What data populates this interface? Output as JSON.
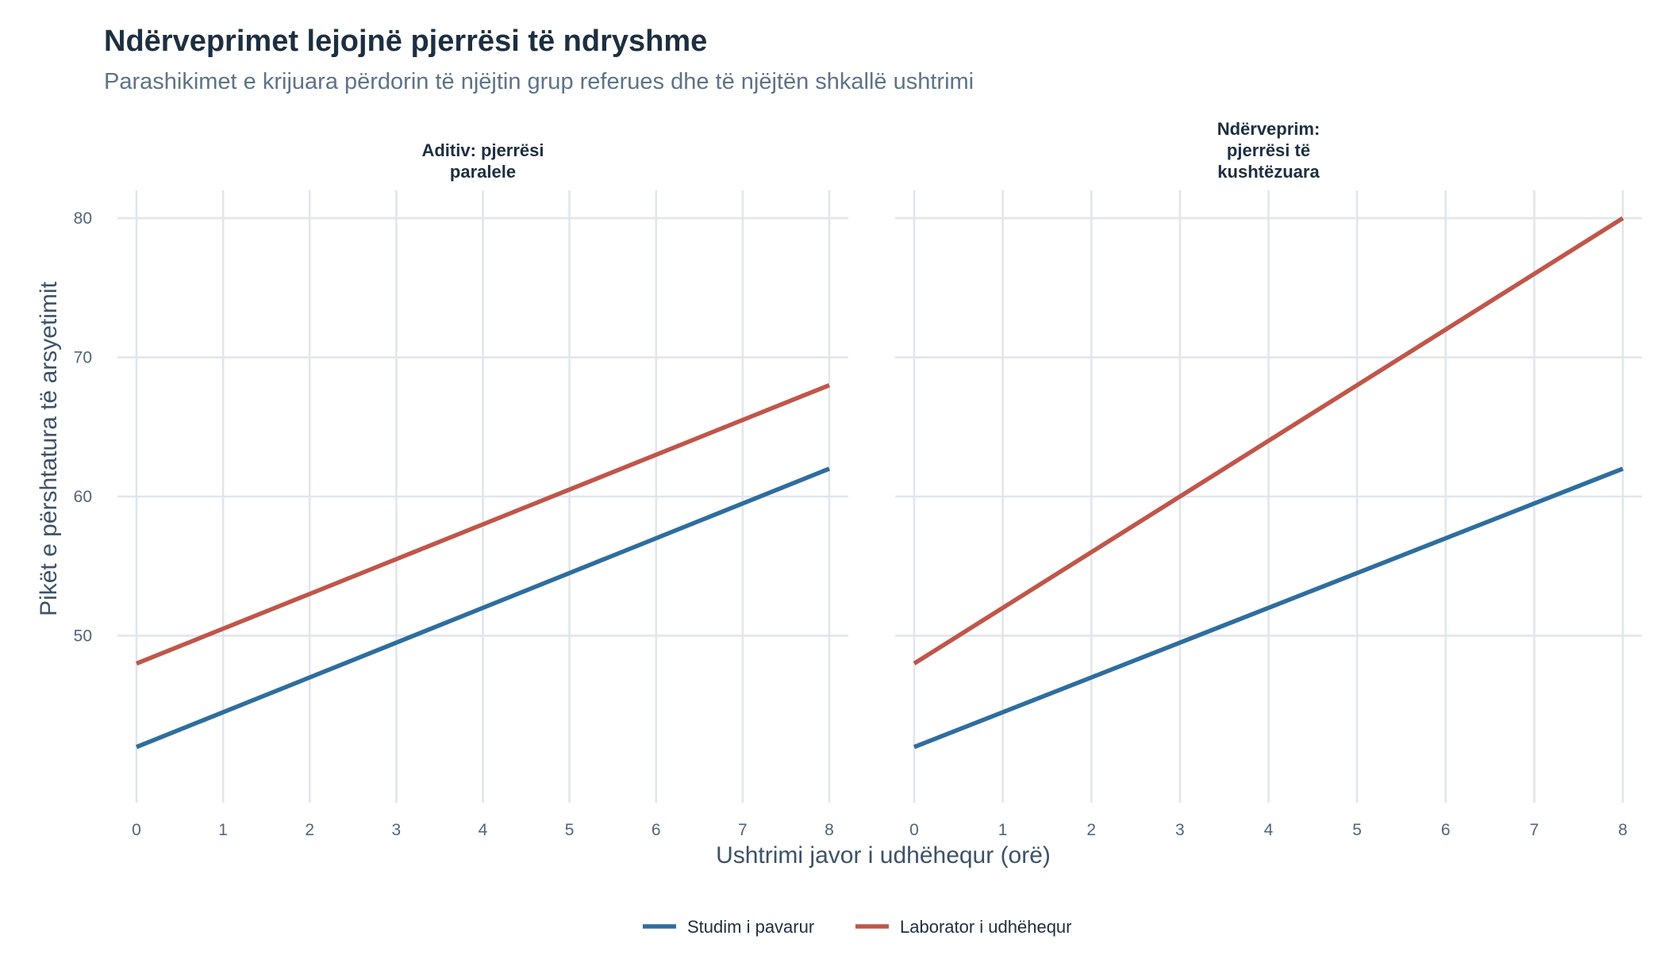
{
  "chart_data": {
    "type": "line",
    "title": "Ndërveprimet lejojnë pjerrësi të ndryshme",
    "subtitle": "Parashikimet e krijuara përdorin të njëjtin grup referues dhe të njëjtën shkallë ushtrimi",
    "xlabel": "Ushtrimi javor i udhëhequr (orë)",
    "ylabel": "Pikët e përshtatura të arsyetimit",
    "xlim": [
      0,
      8
    ],
    "ylim": [
      38,
      82
    ],
    "x_ticks": [
      0,
      1,
      2,
      3,
      4,
      5,
      6,
      7,
      8
    ],
    "y_ticks": [
      50,
      60,
      70,
      80
    ],
    "grid": true,
    "legend_position": "bottom",
    "legend": [
      {
        "name": "Studim i pavarur",
        "color": "#2e6e9e"
      },
      {
        "name": "Laborator i udhëhequr",
        "color": "#c0564a"
      }
    ],
    "panels": [
      {
        "title_lines": [
          "Aditiv: pjerrësi",
          "paralele"
        ],
        "series": [
          {
            "name": "Studim i pavarur",
            "color": "#2e6e9e",
            "x": [
              0,
              8
            ],
            "y": [
              42,
              62
            ]
          },
          {
            "name": "Laborator i udhëhequr",
            "color": "#c0564a",
            "x": [
              0,
              8
            ],
            "y": [
              48,
              68
            ]
          }
        ]
      },
      {
        "title_lines": [
          "Ndërveprim:",
          "pjerrësi të",
          "kushtëzuara"
        ],
        "series": [
          {
            "name": "Studim i pavarur",
            "color": "#2e6e9e",
            "x": [
              0,
              8
            ],
            "y": [
              42,
              62
            ]
          },
          {
            "name": "Laborator i udhëhequr",
            "color": "#c0564a",
            "x": [
              0,
              8
            ],
            "y": [
              48,
              80
            ]
          }
        ]
      }
    ]
  }
}
